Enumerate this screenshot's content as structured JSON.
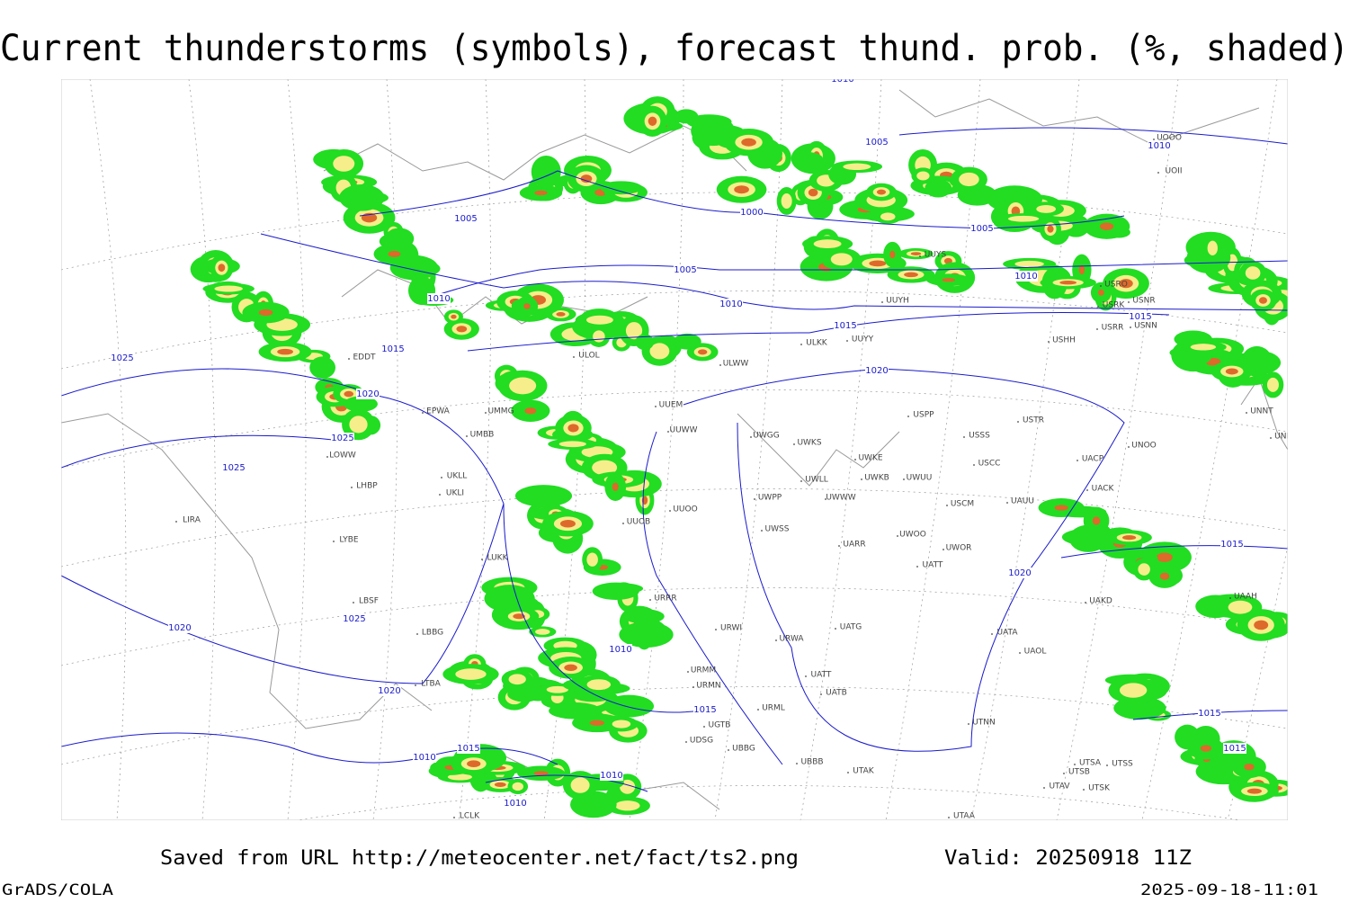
{
  "header": {
    "title": "Current thunderstorms (symbols), forecast thund. prob. (%, shaded)"
  },
  "footer": {
    "saved": "Saved from URL http://meteocenter.net/fact/ts2.png",
    "valid": "Valid: 20250918 11Z",
    "software": "GrADS/COLA",
    "timestamp": "2025-09-18-11:01"
  },
  "map": {
    "isobar_labels": [
      "1005",
      "1000",
      "1005",
      "1010",
      "1010",
      "1015",
      "1020",
      "1025",
      "1025",
      "1025",
      "1025",
      "1020",
      "1020",
      "1015",
      "1010",
      "1010",
      "1010",
      "1015",
      "1010",
      "1015",
      "1020",
      "1020",
      "1005",
      "1010",
      "1015",
      "1010",
      "1005",
      "1015",
      "1015",
      "1015",
      "1010"
    ],
    "station_labels": [
      "EDDT",
      "EPWA",
      "UMMG",
      "UMBB",
      "LOWW",
      "LHBP",
      "UKLL",
      "UKLI",
      "LIRA",
      "LYBE",
      "LBSF",
      "LBBG",
      "LTBA",
      "LCLK",
      "UUEM",
      "UUWW",
      "UUOO",
      "UUOB",
      "LUKK",
      "URRR",
      "URWI",
      "URMM",
      "URMN",
      "UGTB",
      "UBBG",
      "UBBB",
      "UDSG",
      "URML",
      "URWA",
      "UATG",
      "UATT",
      "UATB",
      "UTAK",
      "UTAA",
      "UTNN",
      "UATA",
      "UAOL",
      "UAKD",
      "UACK",
      "UACP",
      "UNOO",
      "UNNT",
      "UNBB",
      "UAAH",
      "UTSA",
      "UTSS",
      "UTSB",
      "UTAV",
      "UTSK",
      "UWGG",
      "UWKS",
      "UWKE",
      "UWKB",
      "UWUU",
      "UWLL",
      "UWWW",
      "UWPP",
      "UWSS",
      "UWOO",
      "UWOR",
      "UARR",
      "UATT",
      "USSS",
      "USCC",
      "USCM",
      "UAUU",
      "USTR",
      "USPP",
      "ULOL",
      "ULKK",
      "UUYY",
      "UUYH",
      "USHH",
      "USRR",
      "USNN",
      "USRK",
      "USNR",
      "USRO",
      "UUYS",
      "UOII",
      "UOOO",
      "ULWW"
    ]
  }
}
